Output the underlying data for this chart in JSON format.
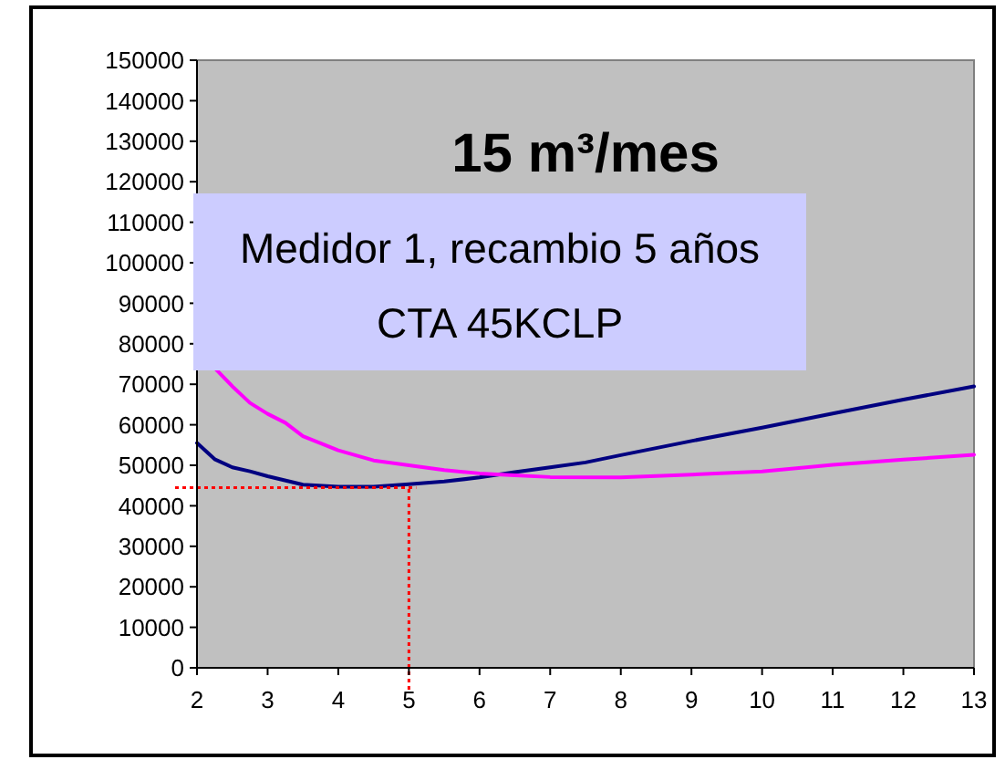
{
  "chart_data": {
    "type": "line",
    "title": "15 m³/mes",
    "annotations": [
      "Medidor 1, recambio 5 años\nCTA 45KCLP"
    ],
    "xlim": [
      2,
      13
    ],
    "xticks": [
      2,
      3,
      4,
      5,
      6,
      7,
      8,
      9,
      10,
      11,
      12,
      13
    ],
    "ylim": [
      0,
      150000
    ],
    "yticks": [
      0,
      10000,
      20000,
      30000,
      40000,
      50000,
      60000,
      70000,
      80000,
      90000,
      100000,
      110000,
      120000,
      130000,
      140000,
      150000
    ],
    "grid": false,
    "marker": "none",
    "line_style": "solid",
    "series": [
      {
        "color": "#000080",
        "x": [
          2,
          2.25,
          2.5,
          2.75,
          3,
          3.5,
          4,
          4.5,
          5,
          5.5,
          6,
          6.5,
          7,
          7.5,
          8,
          9,
          10,
          11,
          12,
          13
        ],
        "values": [
          55500,
          51500,
          49500,
          48500,
          47300,
          45200,
          44700,
          44700,
          45300,
          46000,
          47000,
          48300,
          49500,
          50700,
          52500,
          56000,
          59300,
          62800,
          66200,
          69500
        ]
      },
      {
        "color": "#ff00ff",
        "x": [
          2.25,
          2.5,
          2.75,
          3,
          3.25,
          3.5,
          4,
          4.5,
          5,
          5.5,
          6,
          6.5,
          7,
          8,
          9,
          10,
          11,
          12,
          13
        ],
        "values": [
          74000,
          69500,
          65400,
          62700,
          60500,
          57200,
          53700,
          51200,
          50000,
          48800,
          48000,
          47500,
          47100,
          47000,
          47700,
          48500,
          50100,
          51400,
          52600
        ]
      }
    ],
    "ref_lines": [
      {
        "axis": "x",
        "value": 5,
        "color": "#ff0000",
        "line_style": "dotted"
      },
      {
        "axis": "y",
        "value": 44500,
        "color": "#ff0000",
        "line_style": "dotted"
      }
    ]
  }
}
